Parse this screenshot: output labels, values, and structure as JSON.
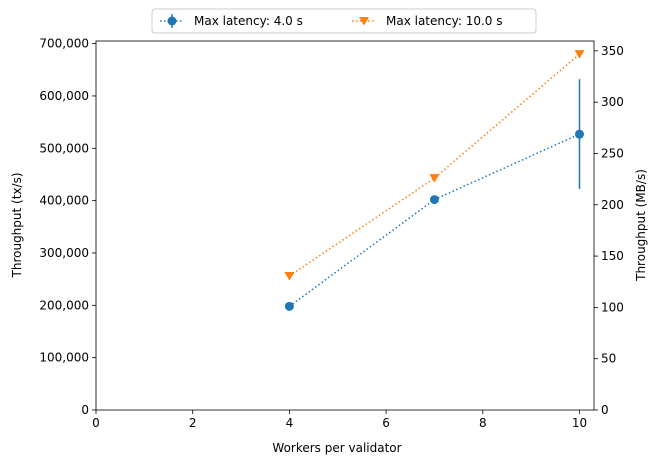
{
  "chart_data": {
    "type": "line",
    "title": "",
    "xlabel": "Workers per validator",
    "ylabel": "Throughput (tx/s)",
    "ylabel_right": "Throughput (MB/s)",
    "xlim": [
      0,
      10.3
    ],
    "ylim": [
      0,
      705000
    ],
    "ylim_right": [
      0,
      359.6
    ],
    "x_ticks": [
      0,
      2,
      4,
      6,
      8,
      10
    ],
    "y_ticks": [
      0,
      100000,
      200000,
      300000,
      400000,
      500000,
      600000,
      700000
    ],
    "y_tick_labels": [
      "0",
      "100,000",
      "200,000",
      "300,000",
      "400,000",
      "500,000",
      "600,000",
      "700,000"
    ],
    "y_right_ticks": [
      0,
      50,
      100,
      150,
      200,
      250,
      300,
      350
    ],
    "grid": false,
    "legend_placement": "top-center",
    "series": [
      {
        "name": "Max latency: 4.0 s",
        "color": "#1f77b4",
        "marker": "circle",
        "line_style": "dotted",
        "x": [
          4,
          7,
          10
        ],
        "y": [
          198000,
          402000,
          527000
        ],
        "error": [
          0,
          0,
          105000
        ]
      },
      {
        "name": "Max latency: 10.0 s",
        "color": "#ff7f0e",
        "marker": "triangle-down",
        "line_style": "dotted",
        "x": [
          4,
          7,
          10
        ],
        "y": [
          256000,
          443000,
          680000
        ],
        "error": [
          0,
          0,
          0
        ]
      }
    ]
  }
}
